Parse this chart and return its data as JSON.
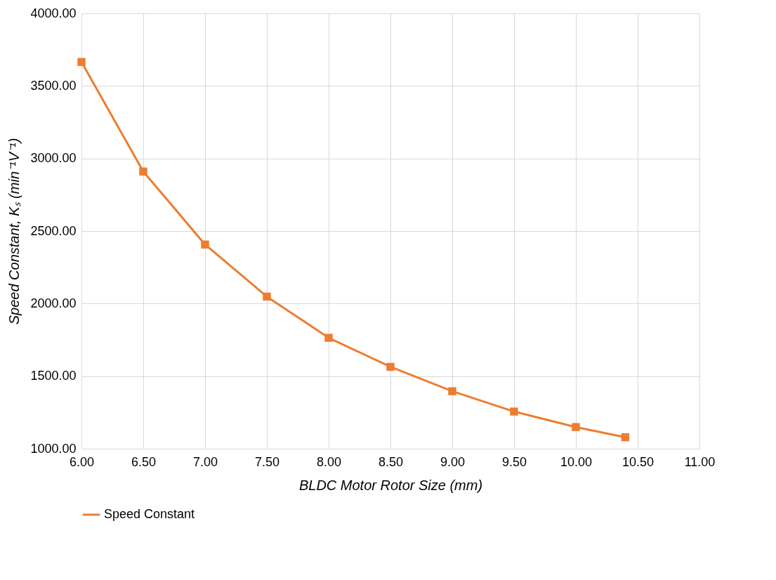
{
  "chart_data": {
    "type": "line",
    "xlabel": "BLDC Motor Rotor Size (mm)",
    "ylabel": "Speed Constant, Kₛ (min⁻¹V⁻¹)",
    "x": [
      6.0,
      6.5,
      7.0,
      7.5,
      8.0,
      8.5,
      9.0,
      9.5,
      10.0,
      10.4
    ],
    "series": [
      {
        "name": "Speed Constant",
        "color": "#ed7d31",
        "values": [
          3665,
          2910,
          2407,
          2048,
          1764,
          1564,
          1396,
          1256,
          1149,
          1079
        ]
      }
    ],
    "xlim": [
      6.0,
      11.0
    ],
    "xticks": [
      {
        "value": 6,
        "label": "6.00"
      },
      {
        "value": 6.5,
        "label": "6.50"
      },
      {
        "value": 7,
        "label": "7.00"
      },
      {
        "value": 7.5,
        "label": "7.50"
      },
      {
        "value": 8,
        "label": "8.00"
      },
      {
        "value": 8.5,
        "label": "8.50"
      },
      {
        "value": 9,
        "label": "9.00"
      },
      {
        "value": 9.5,
        "label": "9.50"
      },
      {
        "value": 10,
        "label": "10.00"
      },
      {
        "value": 10.5,
        "label": "10.50"
      },
      {
        "value": 11,
        "label": "11.00"
      }
    ],
    "ylim": [
      1000,
      4000
    ],
    "yticks": [
      {
        "value": 1000,
        "label": "1000.00"
      },
      {
        "value": 1500,
        "label": "1500.00"
      },
      {
        "value": 2000,
        "label": "2000.00"
      },
      {
        "value": 2500,
        "label": "2500.00"
      },
      {
        "value": 3000,
        "label": "3000.00"
      },
      {
        "value": 3500,
        "label": "3500.00"
      },
      {
        "value": 4000,
        "label": "4000.00"
      }
    ],
    "grid": true,
    "legend": "bottom",
    "marker": "square",
    "line_style": "solid"
  }
}
